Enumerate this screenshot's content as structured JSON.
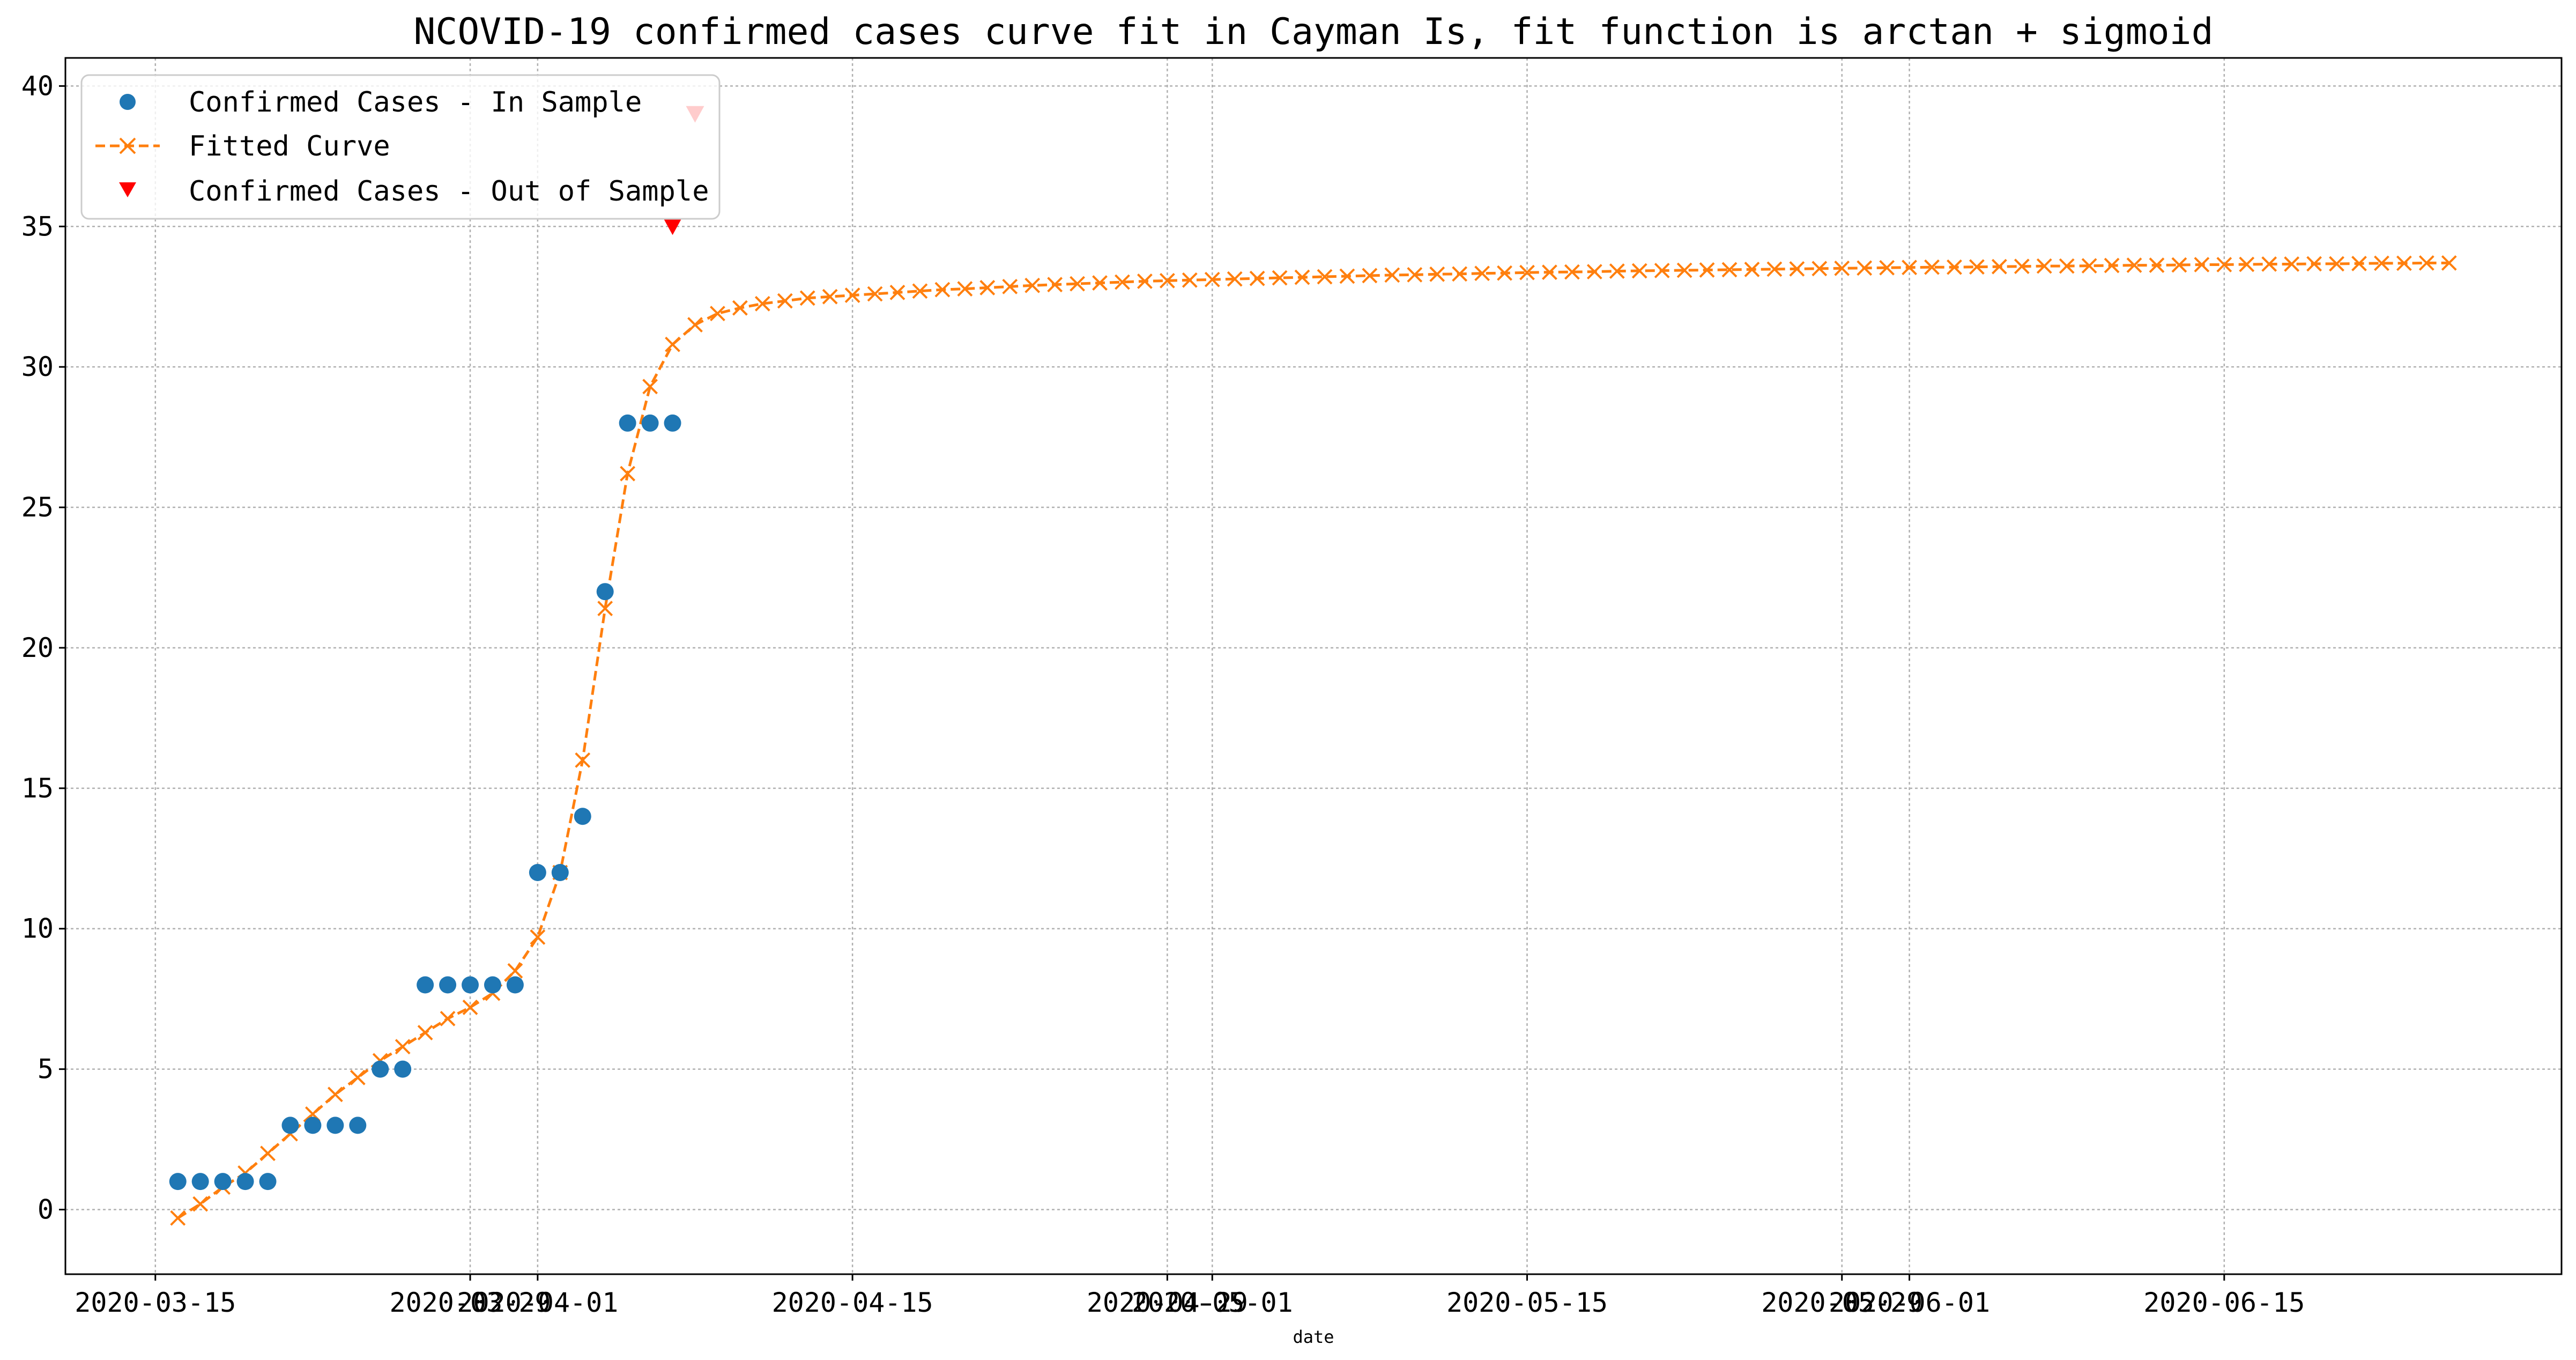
{
  "chart_data": {
    "type": "line",
    "title": "NCOVID-19 confirmed cases curve fit in Cayman Is, fit function is arctan + sigmoid",
    "xlabel": "date",
    "ylabel": "",
    "xlim": [
      "2020-03-11",
      "2020-06-30"
    ],
    "ylim": [
      -2.3,
      41
    ],
    "grid": true,
    "legend": {
      "placement": "top-left",
      "entries": [
        "Confirmed Cases - In Sample",
        "Fitted Curve",
        "Confirmed Cases - Out of Sample"
      ]
    },
    "x_ticks": [
      "2020-03-15",
      "2020-03-29",
      "2020-04-01",
      "2020-04-15",
      "2020-04-29",
      "2020-05-01",
      "2020-05-15",
      "2020-05-29",
      "2020-06-01",
      "2020-06-15"
    ],
    "y_ticks": [
      0,
      5,
      10,
      15,
      20,
      25,
      30,
      35,
      40
    ],
    "colors": {
      "in_sample": "#1f77b4",
      "fitted": "#ff7f0e",
      "out_sample": "#ff0000",
      "grid": "#b0b0b0"
    },
    "series": [
      {
        "name": "Confirmed Cases - In Sample",
        "style": "markers-circle",
        "x": [
          "2020-03-16",
          "2020-03-17",
          "2020-03-18",
          "2020-03-19",
          "2020-03-20",
          "2020-03-21",
          "2020-03-22",
          "2020-03-23",
          "2020-03-24",
          "2020-03-25",
          "2020-03-26",
          "2020-03-27",
          "2020-03-28",
          "2020-03-29",
          "2020-03-30",
          "2020-03-31",
          "2020-04-01",
          "2020-04-02",
          "2020-04-03",
          "2020-04-04",
          "2020-04-05",
          "2020-04-06",
          "2020-04-07"
        ],
        "y": [
          1,
          1,
          1,
          1,
          1,
          3,
          3,
          3,
          3,
          5,
          5,
          8,
          8,
          8,
          8,
          8,
          12,
          12,
          14,
          22,
          28,
          28,
          28
        ]
      },
      {
        "name": "Fitted Curve",
        "style": "dashed-x",
        "start_date": "2020-03-16",
        "y": [
          -0.3,
          0.2,
          0.8,
          1.3,
          2.0,
          2.7,
          3.4,
          4.1,
          4.7,
          5.3,
          5.8,
          6.3,
          6.8,
          7.2,
          7.7,
          8.5,
          9.7,
          12.0,
          16.0,
          21.4,
          26.2,
          29.3,
          30.8,
          31.5,
          31.9,
          32.1,
          32.25,
          32.35,
          32.45,
          32.5,
          32.55,
          32.6,
          32.65,
          32.7,
          32.75,
          32.78,
          32.82,
          32.86,
          32.9,
          32.93,
          32.96,
          32.99,
          33.02,
          33.05,
          33.07,
          33.09,
          33.11,
          33.13,
          33.15,
          33.17,
          33.19,
          33.21,
          33.23,
          33.25,
          33.27,
          33.28,
          33.3,
          33.31,
          33.33,
          33.34,
          33.36,
          33.37,
          33.38,
          33.39,
          33.41,
          33.42,
          33.43,
          33.44,
          33.45,
          33.46,
          33.47,
          33.48,
          33.49,
          33.5,
          33.51,
          33.52,
          33.53,
          33.54,
          33.55,
          33.55,
          33.56,
          33.57,
          33.58,
          33.59,
          33.59,
          33.6,
          33.61,
          33.62,
          33.62,
          33.63,
          33.64,
          33.64,
          33.65,
          33.66,
          33.66,
          33.67,
          33.67,
          33.68,
          33.69,
          33.69,
          33.7,
          33.7
        ]
      },
      {
        "name": "Confirmed Cases - Out of Sample",
        "style": "markers-triangle-down",
        "x": [
          "2020-04-07",
          "2020-04-08"
        ],
        "y": [
          35,
          39
        ]
      }
    ]
  }
}
